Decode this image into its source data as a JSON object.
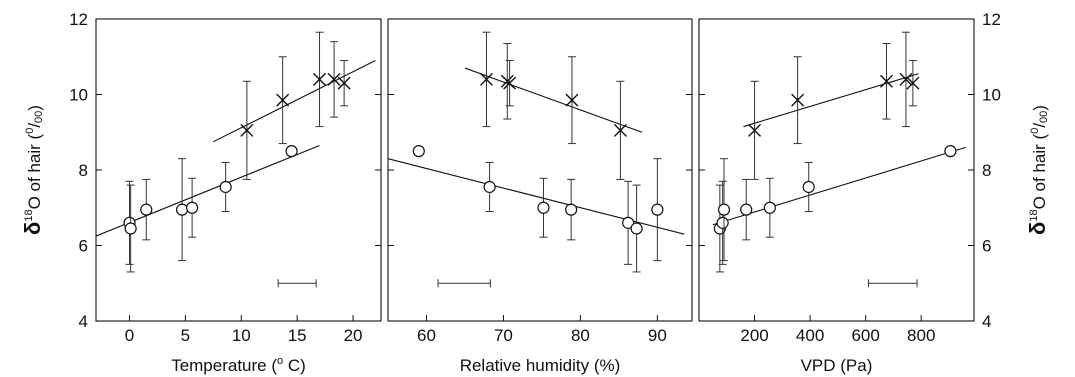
{
  "chart_data": [
    {
      "type": "scatter",
      "xlabel": "Temperature (° C)",
      "xlabel_parts": [
        "Temperature (",
        "o",
        " C)"
      ],
      "ylabel": "δ¹⁸O of hair (⁰/₀₀)",
      "ylabel_parts": [
        "δ",
        "18",
        "O of hair (",
        "0",
        "/",
        "00",
        ")"
      ],
      "xlim": [
        -3,
        22.5
      ],
      "ylim": [
        4,
        12
      ],
      "xticks": [
        0,
        5,
        10,
        15,
        20
      ],
      "yticks": [
        4,
        6,
        8,
        10,
        12
      ],
      "ytick_side": "left",
      "series": [
        {
          "marker": "circle",
          "x": [
            0,
            0.1,
            1.5,
            4.7,
            5.6,
            8.6,
            14.5
          ],
          "y": [
            6.6,
            6.45,
            6.95,
            6.95,
            7.0,
            7.55,
            8.5
          ],
          "err": [
            1.1,
            1.15,
            0.8,
            1.35,
            0.78,
            0.65,
            0
          ],
          "fit": [
            [
              -3,
              6.25
            ],
            [
              17,
              8.65
            ]
          ]
        },
        {
          "marker": "cross",
          "x": [
            10.5,
            13.7,
            17.0,
            18.3,
            19.2
          ],
          "y": [
            9.05,
            9.85,
            10.4,
            10.4,
            10.3
          ],
          "err": [
            1.3,
            1.15,
            1.25,
            1.0,
            0.6
          ],
          "fit": [
            [
              7.5,
              8.75
            ],
            [
              22,
              10.9
            ]
          ]
        }
      ],
      "scale_bar": [
        13.3,
        16.7
      ]
    },
    {
      "type": "scatter",
      "xlabel": "Relative humidity (%)",
      "xlim": [
        55,
        94.5
      ],
      "ylim": [
        4,
        12
      ],
      "xticks": [
        60,
        70,
        80,
        90
      ],
      "series": [
        {
          "marker": "circle",
          "x": [
            59,
            68.2,
            75.2,
            78.8,
            86.2,
            87.3,
            90
          ],
          "y": [
            8.5,
            7.55,
            7.0,
            6.95,
            6.6,
            6.45,
            6.95
          ],
          "err": [
            0,
            0.65,
            0.78,
            0.8,
            1.1,
            1.15,
            1.35
          ],
          "fit": [
            [
              55,
              8.3
            ],
            [
              93.5,
              6.3
            ]
          ]
        },
        {
          "marker": "cross",
          "x": [
            67.8,
            70.5,
            70.8,
            78.9,
            85.2
          ],
          "y": [
            10.4,
            10.35,
            10.3,
            9.85,
            9.05
          ],
          "err": [
            1.25,
            1.0,
            0.6,
            1.15,
            1.3
          ],
          "fit": [
            [
              65,
              10.7
            ],
            [
              88,
              9.0
            ]
          ]
        }
      ],
      "scale_bar": [
        61.5,
        68.3
      ]
    },
    {
      "type": "scatter",
      "xlabel": "VPD (Pa)",
      "ylabel": "δ¹⁸O of hair (⁰/₀₀)",
      "ylabel_parts": [
        "δ",
        "18",
        "O of hair (",
        "0",
        "/",
        "00",
        ")"
      ],
      "xlim": [
        0,
        990
      ],
      "ylim": [
        4,
        12
      ],
      "xticks": [
        200,
        400,
        600,
        800
      ],
      "yticks": [
        4,
        6,
        8,
        10,
        12
      ],
      "ytick_side": "right",
      "series": [
        {
          "marker": "circle",
          "x": [
            75,
            85,
            90,
            170,
            255,
            395,
            905
          ],
          "y": [
            6.45,
            6.6,
            6.95,
            6.95,
            7.0,
            7.55,
            8.5
          ],
          "err": [
            1.15,
            1.1,
            1.35,
            0.8,
            0.78,
            0.65,
            0
          ],
          "fit": [
            [
              50,
              6.55
            ],
            [
              960,
              8.6
            ]
          ]
        },
        {
          "marker": "cross",
          "x": [
            200,
            355,
            675,
            745,
            770
          ],
          "y": [
            9.05,
            9.85,
            10.35,
            10.4,
            10.3
          ],
          "err": [
            1.3,
            1.15,
            1.0,
            1.25,
            0.6
          ],
          "fit": [
            [
              160,
              9.15
            ],
            [
              790,
              10.55
            ]
          ]
        }
      ],
      "scale_bar": [
        610,
        785
      ]
    }
  ]
}
